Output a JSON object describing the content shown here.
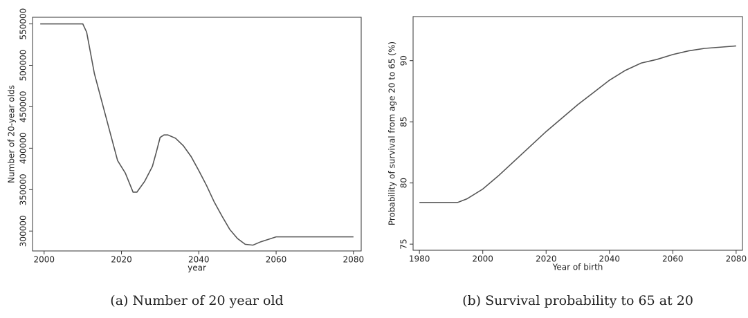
{
  "chart_data": [
    {
      "type": "line",
      "caption": "(a) Number of 20 year old",
      "x_label": "year",
      "y_label": "Number of 20-year olds",
      "x": [
        1999,
        2010,
        2011,
        2013,
        2015,
        2017,
        2019,
        2021,
        2023,
        2024,
        2026,
        2028,
        2029,
        2030,
        2031,
        2032,
        2034,
        2036,
        2038,
        2040,
        2042,
        2044,
        2046,
        2048,
        2050,
        2052,
        2054,
        2056,
        2058,
        2060,
        2080
      ],
      "values": [
        550000,
        550000,
        540000,
        490000,
        455000,
        420000,
        385000,
        370000,
        347000,
        347000,
        360000,
        378000,
        395000,
        413000,
        416000,
        416000,
        412000,
        403000,
        390000,
        373000,
        355000,
        335000,
        318000,
        302000,
        291000,
        284000,
        283000,
        287000,
        290000,
        293000,
        293000
      ],
      "color": "#555555",
      "xlim": [
        1997,
        2082
      ],
      "xticks": [
        2000,
        2020,
        2040,
        2060,
        2080
      ],
      "ylim": [
        276000,
        558000
      ],
      "yticks": [
        300000,
        350000,
        400000,
        450000,
        500000,
        550000
      ],
      "grid": false
    },
    {
      "type": "line",
      "caption": "(b) Survival probability to 65 at 20",
      "x_label": "Year of birth",
      "y_label": "Probability of survival from age 20 to 65 (%)",
      "x": [
        1980,
        1992,
        1995,
        2000,
        2005,
        2010,
        2015,
        2020,
        2025,
        2030,
        2035,
        2040,
        2045,
        2050,
        2055,
        2060,
        2065,
        2070,
        2075,
        2080
      ],
      "values": [
        78.4,
        78.4,
        78.7,
        79.5,
        80.6,
        81.8,
        83.0,
        84.2,
        85.3,
        86.4,
        87.4,
        88.4,
        89.2,
        89.8,
        90.1,
        90.5,
        90.8,
        91.0,
        91.1,
        91.2
      ],
      "color": "#555555",
      "xlim": [
        1978,
        2082
      ],
      "xticks": [
        1980,
        2000,
        2020,
        2040,
        2060,
        2080
      ],
      "ylim": [
        74.5,
        93.6
      ],
      "yticks": [
        75,
        80,
        85,
        90
      ],
      "grid": false
    }
  ]
}
